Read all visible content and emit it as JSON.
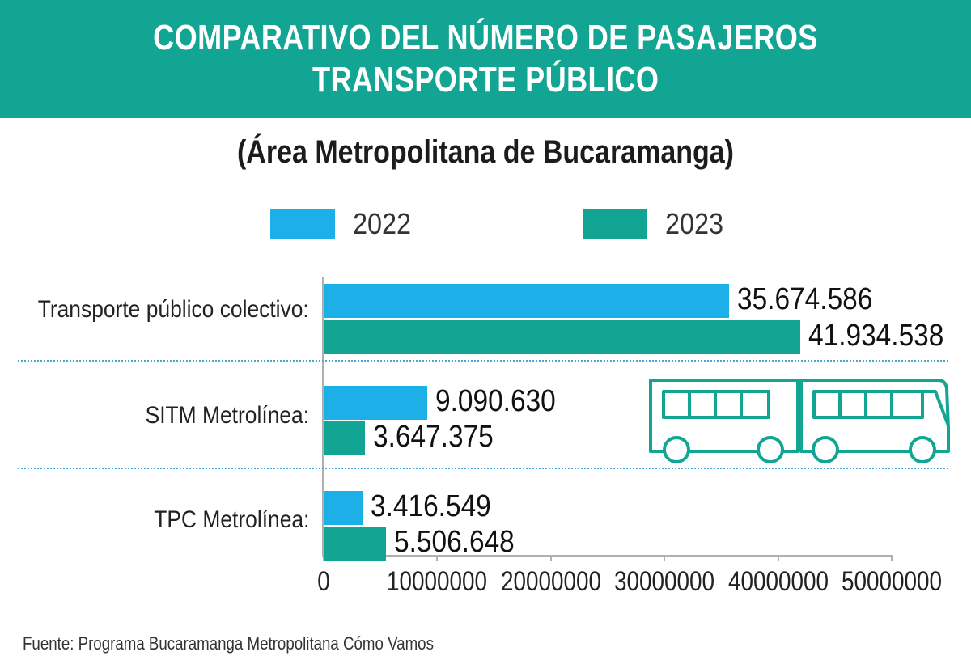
{
  "header": {
    "title_line1": "COMPARATIVO DEL NÚMERO DE PASAJEROS",
    "title_line2": "TRANSPORTE PÚBLICO",
    "subtitle": "(Área Metropolitana de Bucaramanga)"
  },
  "legend": [
    {
      "label": "2022",
      "color": "#1db0e8"
    },
    {
      "label": "2023",
      "color": "#13a593"
    }
  ],
  "chart_data": {
    "type": "bar",
    "orientation": "horizontal",
    "categories": [
      "Transporte público colectivo:",
      "SITM Metrolínea:",
      "TPC Metrolínea:"
    ],
    "series": [
      {
        "name": "2022",
        "values": [
          35674586,
          9090630,
          3416549
        ],
        "labels": [
          "35.674.586",
          "9.090.630",
          "3.416.549"
        ],
        "color": "#1db0e8"
      },
      {
        "name": "2023",
        "values": [
          41934538,
          3647375,
          5506648
        ],
        "labels": [
          "41.934.538",
          "3.647.375",
          "5.506.648"
        ],
        "color": "#13a593"
      }
    ],
    "xlim": [
      0,
      50000000
    ],
    "xticks": [
      "0",
      "10000000",
      "20000000",
      "30000000",
      "40000000",
      "50000000"
    ],
    "xtick_values": [
      0,
      10000000,
      20000000,
      30000000,
      40000000,
      50000000
    ],
    "legend_position": "top"
  },
  "icon": {
    "name": "bus-icon",
    "color": "#13a593"
  },
  "source": "Fuente: Programa Bucaramanga Metropolitana Cómo Vamos"
}
